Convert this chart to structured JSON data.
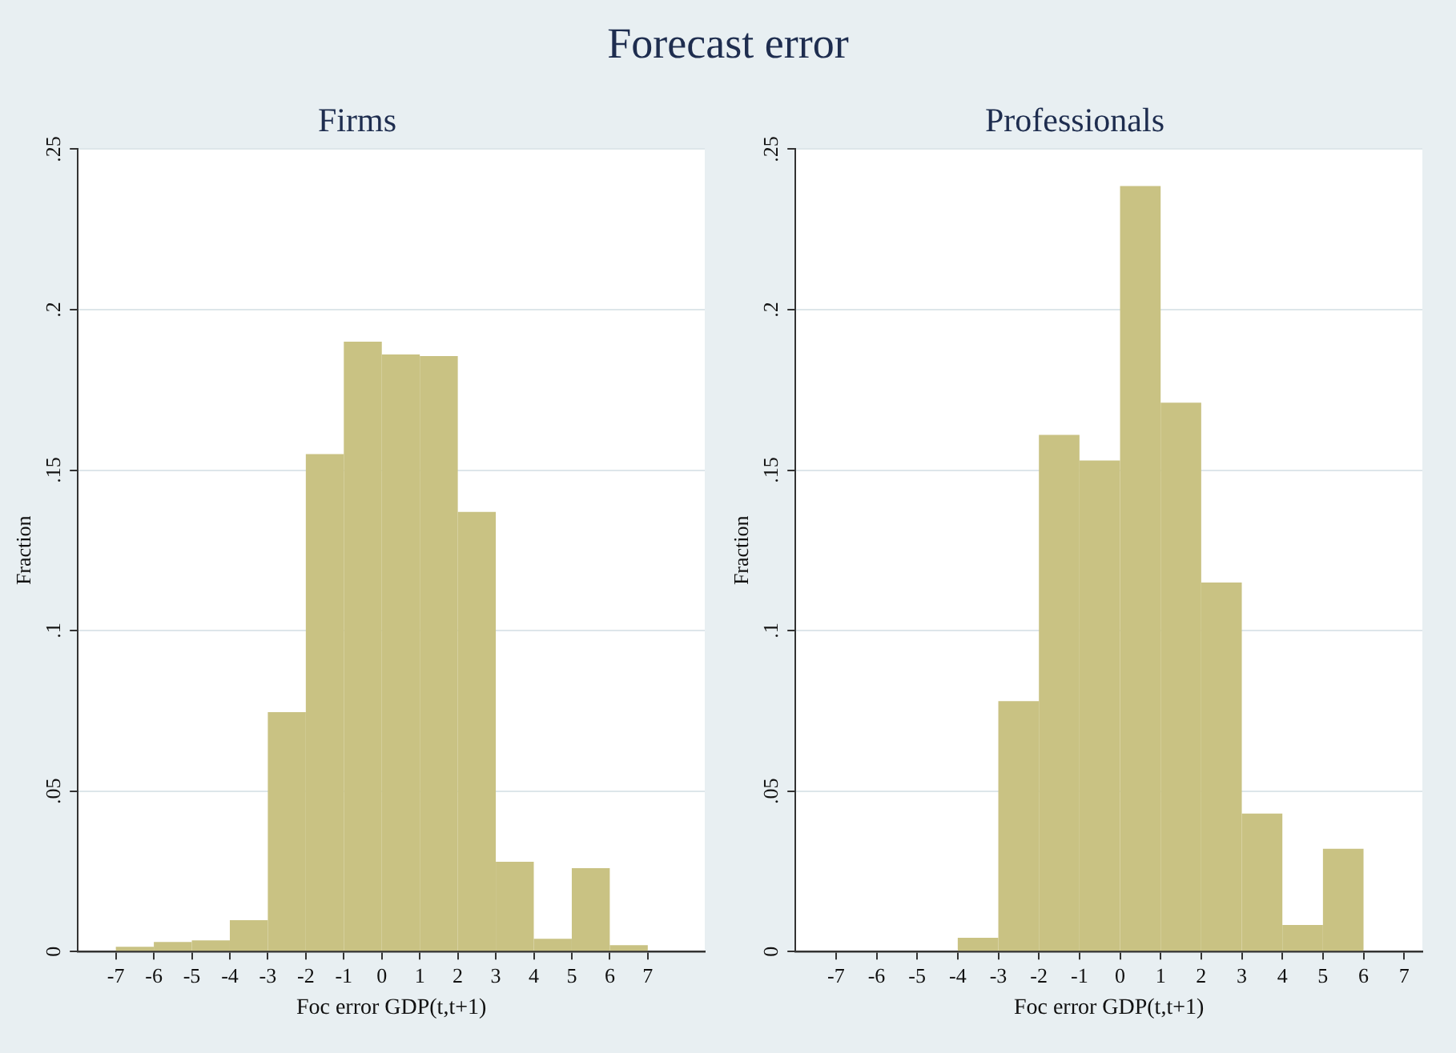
{
  "chart_data": [
    {
      "type": "histogram",
      "title": "Firms",
      "annotations": [
        "Forecast error"
      ],
      "xlabel": "Foc error GDP(t,t+1)",
      "ylabel": "Fraction",
      "color": "#c9c283",
      "bins": [
        -7,
        -6,
        -5,
        -4,
        -3,
        -2,
        -1,
        0,
        1,
        2,
        3,
        4,
        5,
        6,
        7
      ],
      "values": [
        0.0015,
        0.003,
        0.0035,
        0.0098,
        0.0746,
        0.155,
        0.19,
        0.186,
        0.1855,
        0.137,
        0.028,
        0.004,
        0.026,
        0.002
      ],
      "xlim": [
        -8,
        8.5
      ],
      "xticks": [
        -7,
        -6,
        -5,
        -4,
        -3,
        -2,
        -1,
        0,
        1,
        2,
        3,
        4,
        5,
        6,
        7
      ],
      "ylim": [
        0,
        0.25
      ],
      "yticks": [
        0,
        {
          "value": 0.05,
          "label": ".05"
        },
        {
          "value": 0.1,
          "label": ".1"
        },
        {
          "value": 0.15,
          "label": ".15"
        },
        {
          "value": 0.2,
          "label": ".2"
        },
        {
          "value": 0.25,
          "label": ".25"
        }
      ],
      "grid": "y"
    },
    {
      "type": "histogram",
      "title": "Professionals",
      "xlabel": "Foc error GDP(t,t+1)",
      "ylabel": "Fraction",
      "color": "#c9c283",
      "bins": [
        -4,
        -3,
        -2,
        -1,
        0,
        1,
        2,
        3,
        4,
        5,
        6
      ],
      "values": [
        0.0043,
        0.078,
        0.161,
        0.153,
        0.2385,
        0.171,
        0.115,
        0.043,
        0.0083,
        0.032
      ],
      "xlim": [
        -8,
        7.45
      ],
      "xticks": [
        -7,
        -6,
        -5,
        -4,
        -3,
        -2,
        -1,
        0,
        1,
        2,
        3,
        4,
        5,
        6,
        7
      ],
      "ylim": [
        0,
        0.25
      ],
      "yticks": [
        0,
        {
          "value": 0.05,
          "label": ".05"
        },
        {
          "value": 0.1,
          "label": ".1"
        },
        {
          "value": 0.15,
          "label": ".15"
        },
        {
          "value": 0.2,
          "label": ".2"
        },
        {
          "value": 0.25,
          "label": ".25"
        }
      ],
      "grid": "y"
    }
  ]
}
